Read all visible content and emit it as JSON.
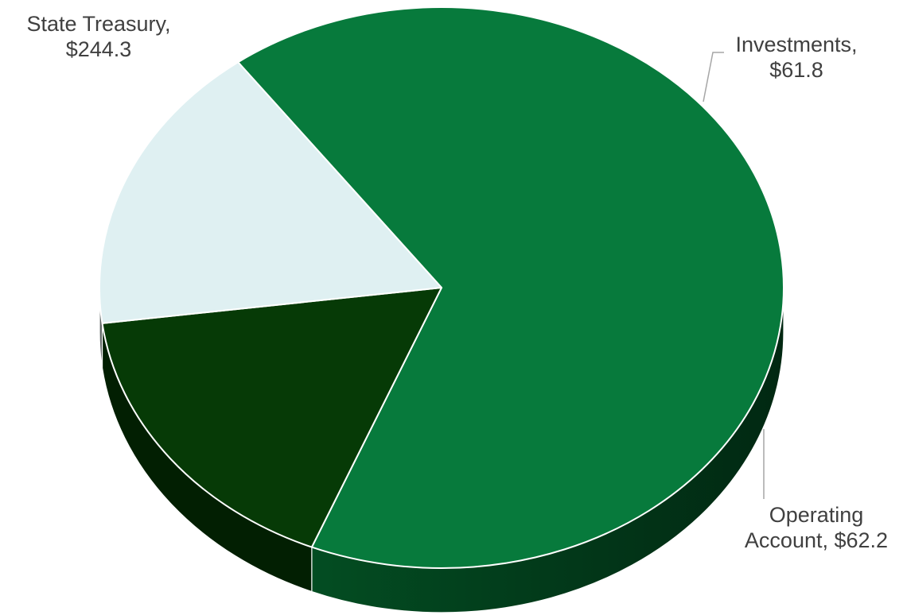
{
  "chart_data": {
    "type": "pie",
    "three_d": true,
    "title": "",
    "slices": [
      {
        "label": "State Treasury",
        "value": 244.3,
        "display": "$244.3",
        "color": "#077a3c",
        "side_color": "#02401c"
      },
      {
        "label": "Investments",
        "value": 61.8,
        "display": "$61.8",
        "color": "#063a06",
        "side_color": "#021f02"
      },
      {
        "label": "Operating Account",
        "value": 62.2,
        "display": "$62.2",
        "color": "#dff0f2",
        "side_color": "#5a615f"
      }
    ]
  },
  "labels": [
    {
      "line1": "State Treasury,",
      "line2": "$244.3"
    },
    {
      "line1": "Investments,",
      "line2": "$61.8"
    },
    {
      "line1": "Operating",
      "line2": "Account, $62.2"
    }
  ]
}
